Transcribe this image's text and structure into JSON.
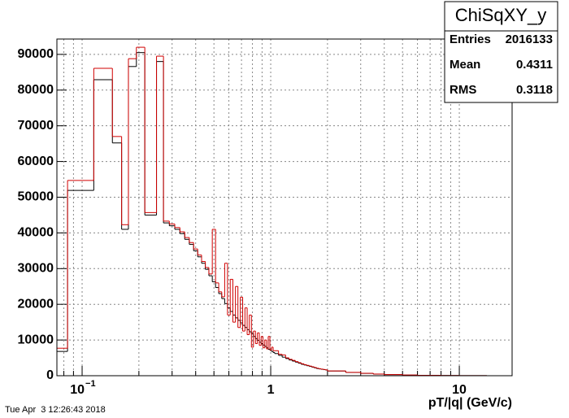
{
  "chart_data": {
    "type": "histogram",
    "stats": {
      "title": "ChiSqXY_y",
      "rows": [
        [
          "Entries",
          "2016133"
        ],
        [
          "Mean",
          "0.4311"
        ],
        [
          "RMS",
          "0.3118"
        ]
      ]
    },
    "x_label": "pT/|q| (GeV/c)",
    "timestamp": "Tue Apr  3 12:26:43 2018",
    "x_log": true,
    "grid": true,
    "bins": [
      0.0735,
      0.0837,
      0.1153,
      0.1447,
      0.162,
      0.176,
      0.194,
      0.215,
      0.248,
      0.27,
      0.29,
      0.31,
      0.33,
      0.35,
      0.37,
      0.39,
      0.41,
      0.43,
      0.45,
      0.47,
      0.49,
      0.51,
      0.53,
      0.55,
      0.57,
      0.59,
      0.61,
      0.63,
      0.65,
      0.67,
      0.69,
      0.71,
      0.73,
      0.75,
      0.77,
      0.79,
      0.81,
      0.83,
      0.85,
      0.87,
      0.89,
      0.91,
      0.93,
      0.95,
      0.97,
      0.99,
      1.01,
      1.03,
      1.05,
      1.1,
      1.15,
      1.2,
      1.25,
      1.3,
      1.35,
      1.4,
      1.45,
      1.5,
      1.55,
      1.6,
      1.65,
      1.7,
      1.75,
      1.8,
      1.85,
      1.9,
      1.95,
      2.0,
      2.5,
      3,
      3.5,
      4,
      5,
      6,
      8,
      10,
      14,
      19
    ],
    "series": [
      {
        "color": "#000000",
        "values": [
          6800,
          51900,
          82900,
          65200,
          41000,
          86600,
          90500,
          45000,
          88000,
          42800,
          42000,
          41000,
          39800,
          38200,
          36800,
          35000,
          33300,
          31500,
          29800,
          28000,
          26300,
          24700,
          23000,
          21600,
          20200,
          19000,
          18000,
          17000,
          16200,
          15500,
          14800,
          14100,
          13500,
          12900,
          12300,
          11700,
          11000,
          10400,
          9900,
          9400,
          9000,
          8600,
          8200,
          7800,
          7400,
          7100,
          6800,
          6500,
          6200,
          5700,
          5200,
          4800,
          4400,
          4100,
          3800,
          3500,
          3200,
          3000,
          2800,
          2600,
          2400,
          2200,
          2000,
          1900,
          1800,
          1700,
          1600,
          1300,
          900,
          650,
          450,
          300,
          180,
          100,
          50,
          20,
          5
        ]
      },
      {
        "color": "#d00000",
        "values": [
          7700,
          54700,
          86100,
          67000,
          42300,
          88800,
          92000,
          45700,
          89500,
          43300,
          42500,
          41500,
          40300,
          38700,
          37300,
          35500,
          33800,
          32000,
          30300,
          28500,
          41000,
          26000,
          23500,
          22100,
          31500,
          17000,
          27000,
          15000,
          25000,
          13500,
          22000,
          12500,
          19000,
          11500,
          17000,
          8000,
          12500,
          9000,
          12000,
          8500,
          11000,
          7800,
          10000,
          7500,
          11000,
          7200,
          8000,
          7000,
          7000,
          6000,
          5800,
          5000,
          4600,
          4300,
          3950,
          3650,
          3350,
          3100,
          2900,
          2700,
          2500,
          2300,
          2100,
          1950,
          1850,
          1750,
          1650,
          1350,
          950,
          680,
          470,
          310,
          190,
          105,
          55,
          22,
          6
        ]
      }
    ],
    "xlim": [
      0.0735,
      19.05
    ],
    "xticks": [
      {
        "value": 0.1,
        "label": "10",
        "exponent": "−1"
      },
      1,
      10
    ],
    "xminorticks": [
      0.08,
      0.09,
      0.2,
      0.3,
      0.4,
      0.5,
      0.6,
      0.7,
      0.8,
      0.9,
      2,
      3,
      4,
      5,
      6,
      7,
      8,
      9
    ],
    "ylim": [
      0,
      94300
    ],
    "yticks": [
      0,
      10000,
      20000,
      30000,
      40000,
      50000,
      60000,
      70000,
      80000,
      90000
    ]
  }
}
